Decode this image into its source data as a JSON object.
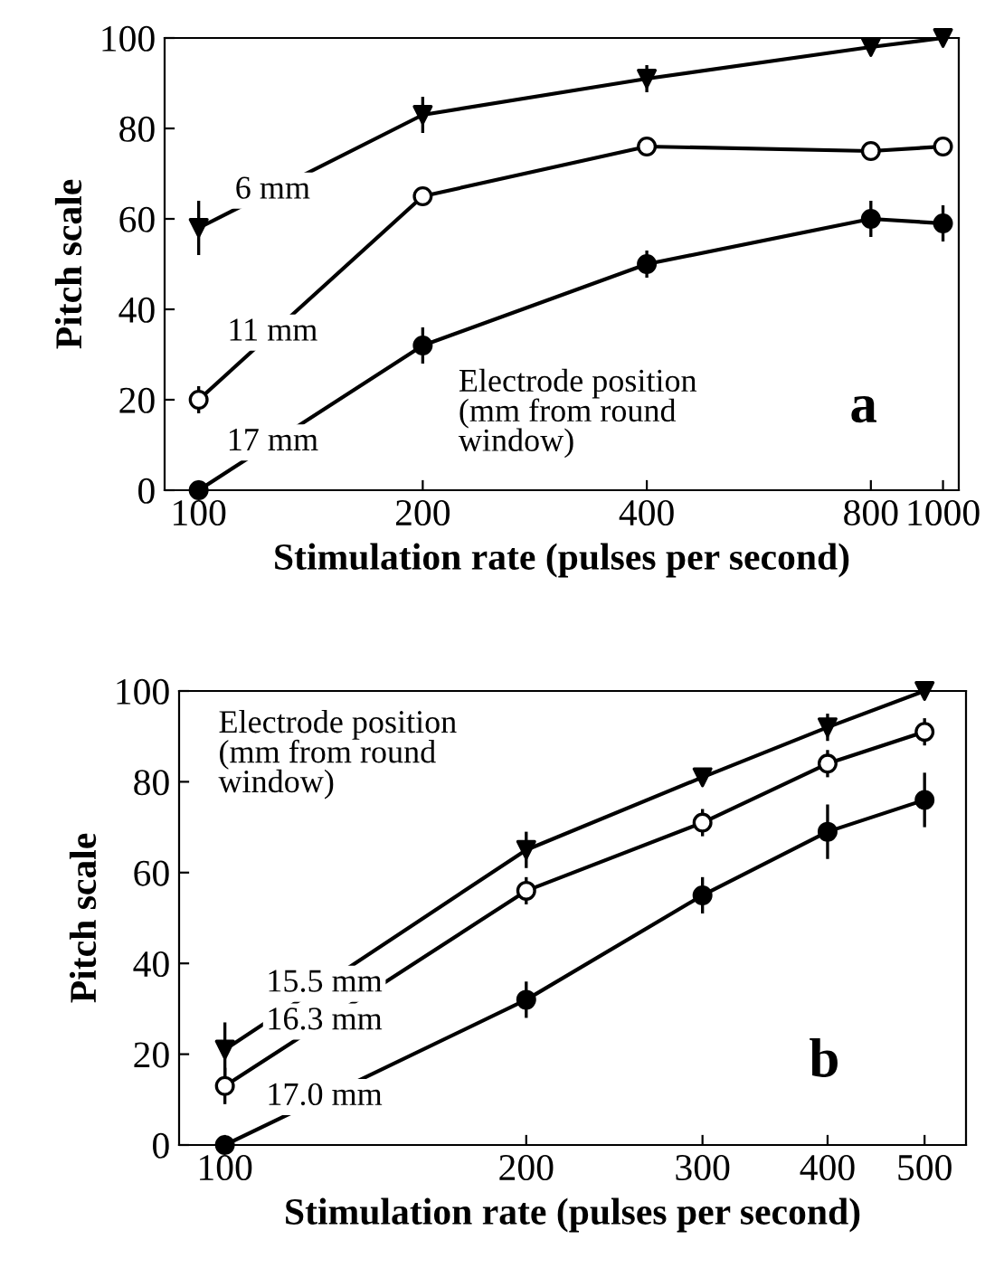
{
  "chart_data": [
    {
      "type": "line",
      "xlabel": "Stimulation rate (pulses per second)",
      "ylabel": "Pitch scale",
      "log": "x",
      "xlim": [
        90,
        1050
      ],
      "xticks": [
        100,
        200,
        400,
        800,
        1000
      ],
      "ylim": [
        0,
        100
      ],
      "yticks": [
        0,
        20,
        40,
        60,
        80,
        100
      ],
      "grid": false,
      "legend": false,
      "line_style": "solid",
      "annotations": [
        "Electrode position\n(mm from round\nwindow)",
        "a"
      ],
      "series": [
        {
          "name": "6 mm",
          "color": "#000000",
          "marker": "triangle",
          "x": [
            100,
            200,
            400,
            800,
            1000
          ],
          "values": [
            58,
            83,
            91,
            98,
            100
          ],
          "errors": [
            6,
            4,
            3,
            1,
            null
          ]
        },
        {
          "name": "11 mm",
          "color": "#000000",
          "colors": [
            "#ffffff",
            "#ffffff",
            "#ffffff",
            "#ffffff",
            "#ffffff"
          ],
          "marker": "circle",
          "x": [
            100,
            200,
            400,
            800,
            1000
          ],
          "values": [
            20,
            65,
            76,
            75,
            76
          ],
          "errors": [
            3,
            2,
            1,
            1,
            2
          ]
        },
        {
          "name": "17 mm",
          "color": "#000000",
          "marker": "circle",
          "x": [
            100,
            200,
            400,
            800,
            1000
          ],
          "values": [
            0,
            32,
            50,
            60,
            59
          ],
          "errors": [
            null,
            4,
            3,
            4,
            4
          ]
        }
      ]
    },
    {
      "type": "line",
      "xlabel": "Stimulation rate (pulses per second)",
      "ylabel": "Pitch scale",
      "log": "x",
      "xlim": [
        90,
        550
      ],
      "xticks": [
        100,
        200,
        300,
        400,
        500
      ],
      "ylim": [
        0,
        100
      ],
      "yticks": [
        0,
        20,
        40,
        60,
        80,
        100
      ],
      "grid": false,
      "legend": false,
      "line_style": "solid",
      "annotations": [
        "Electrode position\n(mm from round\nwindow)",
        "b"
      ],
      "series": [
        {
          "name": "15.5 mm",
          "color": "#000000",
          "marker": "triangle",
          "x": [
            100,
            200,
            300,
            400,
            500
          ],
          "values": [
            21,
            65,
            81,
            92,
            100
          ],
          "errors": [
            6,
            4,
            null,
            3,
            null
          ]
        },
        {
          "name": "16.3 mm",
          "color": "#000000",
          "colors": [
            "#ffffff",
            "#ffffff",
            "#ffffff",
            "#ffffff",
            "#ffffff"
          ],
          "marker": "circle",
          "x": [
            100,
            200,
            300,
            400,
            500
          ],
          "values": [
            13,
            56,
            71,
            84,
            91
          ],
          "errors": [
            4,
            3,
            3,
            3,
            3
          ]
        },
        {
          "name": "17.0 mm",
          "color": "#000000",
          "marker": "circle",
          "x": [
            100,
            200,
            300,
            400,
            500
          ],
          "values": [
            0,
            32,
            55,
            69,
            76
          ],
          "errors": [
            2,
            4,
            4,
            6,
            6
          ]
        }
      ]
    }
  ]
}
